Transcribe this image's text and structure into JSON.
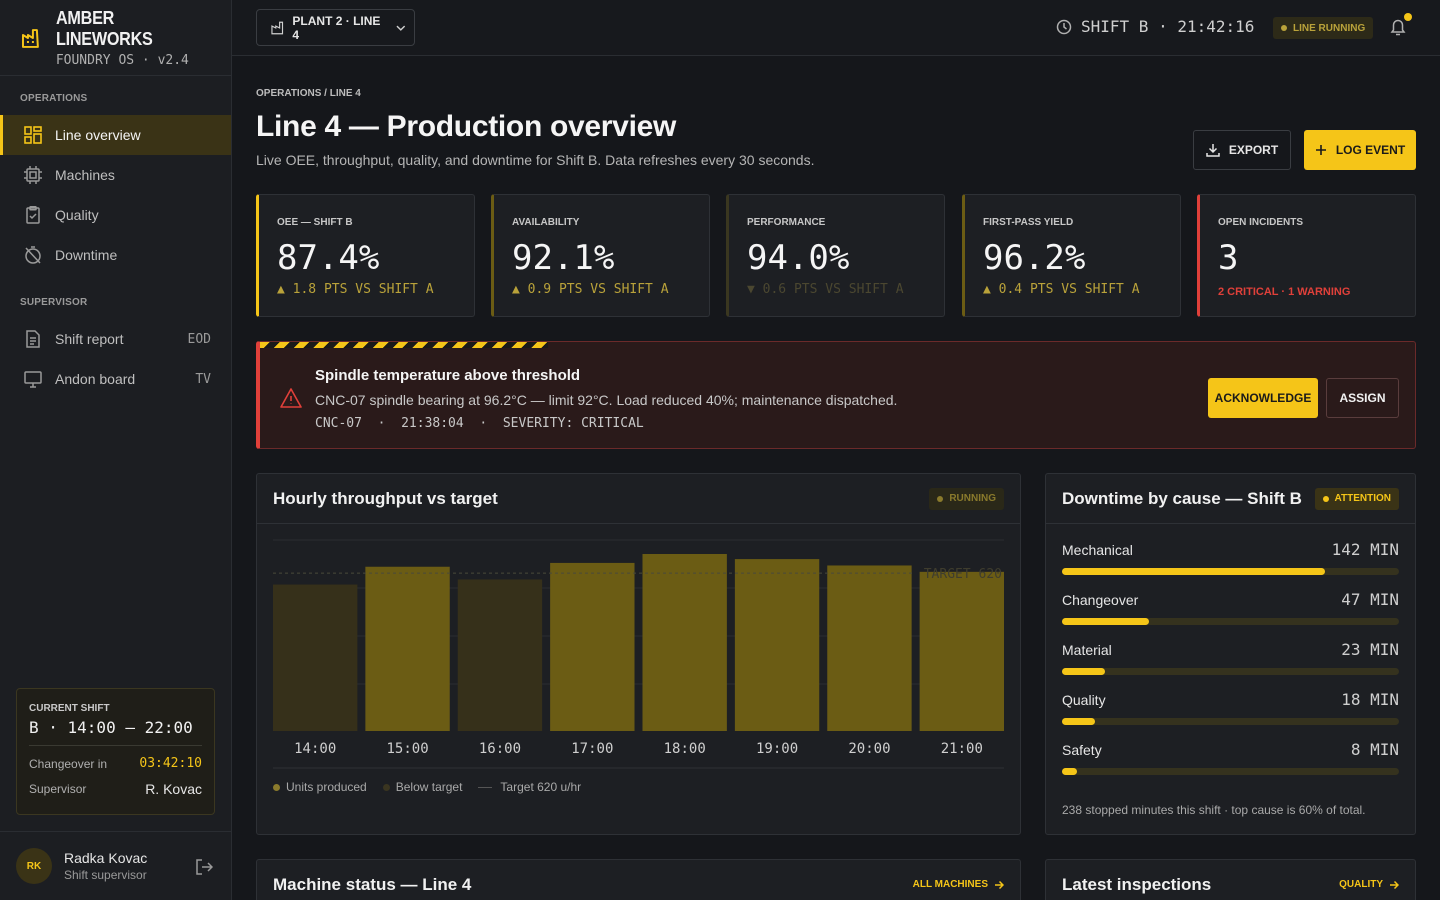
{
  "brand": {
    "name": "AMBER LINEWORKS",
    "sub": "FOUNDRY OS · v2.4"
  },
  "sidebar": {
    "sections": [
      "OPERATIONS",
      "SUPERVISOR"
    ],
    "items": [
      {
        "label": "Line overview",
        "icon": "grid-icon",
        "active": true
      },
      {
        "label": "Machines",
        "icon": "cpu-icon"
      },
      {
        "label": "Quality",
        "icon": "clipboard-check-icon"
      },
      {
        "label": "Downtime",
        "icon": "timer-off-icon"
      },
      {
        "label": "Shift report",
        "icon": "document-icon",
        "tag": "EOD"
      },
      {
        "label": "Andon board",
        "icon": "monitor-icon",
        "tag": "TV"
      }
    ]
  },
  "shift_card": {
    "label": "CURRENT SHIFT",
    "time": "B · 14:00 – 22:00",
    "changeover_label": "Changeover in",
    "changeover_value": "03:42:10",
    "supervisor_label": "Supervisor",
    "supervisor_value": "R. Kovac"
  },
  "user": {
    "initials": "RK",
    "name": "Radka Kovac",
    "role": "Shift supervisor"
  },
  "topbar": {
    "plant": "PLANT 2 · LINE 4",
    "clock": "SHIFT B · 21:42:16",
    "line_status": "LINE RUNNING"
  },
  "header": {
    "breadcrumb": "OPERATIONS / LINE 4",
    "title": "Line 4 — Production overview",
    "subtitle": "Live OEE, throughput, quality, and downtime for Shift B. Data refreshes every 30 seconds.",
    "export_label": "EXPORT",
    "log_label": "LOG EVENT"
  },
  "kpis": [
    {
      "label": "OEE — SHIFT B",
      "value": "87.4%",
      "delta": "▲ 1.8 PTS VS SHIFT A",
      "trend": "up"
    },
    {
      "label": "AVAILABILITY",
      "value": "92.1%",
      "delta": "▲ 0.9 PTS VS SHIFT A",
      "trend": "up"
    },
    {
      "label": "PERFORMANCE",
      "value": "94.0%",
      "delta": "▼ 0.6 PTS VS SHIFT A",
      "trend": "down"
    },
    {
      "label": "FIRST-PASS YIELD",
      "value": "96.2%",
      "delta": "▲ 0.4 PTS VS SHIFT A",
      "trend": "up"
    },
    {
      "label": "OPEN INCIDENTS",
      "value": "3",
      "delta": "2 CRITICAL · 1 WARNING",
      "trend": "critical"
    }
  ],
  "alert": {
    "title": "Spindle temperature above threshold",
    "description": "CNC-07 spindle bearing at 96.2°C — limit 92°C. Load reduced 40%; maintenance dispatched.",
    "meta": "CNC-07  ·  21:38:04  ·  SEVERITY: CRITICAL",
    "ack_label": "ACKNOWLEDGE",
    "assign_label": "ASSIGN"
  },
  "throughput": {
    "title": "Hourly throughput vs target",
    "badge": "RUNNING",
    "target_label": "TARGET 620",
    "legend": {
      "produced": "Units produced",
      "below": "Below target",
      "target": "Target 620 u/hr"
    }
  },
  "chart_data": {
    "type": "bar",
    "categories": [
      "14:00",
      "15:00",
      "16:00",
      "17:00",
      "18:00",
      "19:00",
      "20:00",
      "21:00"
    ],
    "values": [
      575,
      645,
      595,
      660,
      695,
      675,
      650,
      625
    ],
    "below_target": [
      true,
      false,
      true,
      false,
      false,
      false,
      false,
      false
    ],
    "target": 620,
    "ylim": [
      0,
      750
    ],
    "grid": true,
    "colors": {
      "produced": "#6b5c14",
      "below": "#36301a",
      "target": "#4a4a3a"
    }
  },
  "downtime": {
    "title": "Downtime by cause — Shift B",
    "badge": "ATTENTION",
    "max": 182,
    "items": [
      {
        "name": "Mechanical",
        "value": 142,
        "label": "142 MIN"
      },
      {
        "name": "Changeover",
        "value": 47,
        "label": "47 MIN"
      },
      {
        "name": "Material",
        "value": 23,
        "label": "23 MIN"
      },
      {
        "name": "Quality",
        "value": 18,
        "label": "18 MIN"
      },
      {
        "name": "Safety",
        "value": 8,
        "label": "8 MIN"
      }
    ],
    "footer": "238 stopped minutes this shift · top cause is 60% of total."
  },
  "machine_status": {
    "title": "Machine status — Line 4",
    "link": "ALL MACHINES"
  },
  "inspections": {
    "title": "Latest inspections",
    "link": "QUALITY"
  }
}
